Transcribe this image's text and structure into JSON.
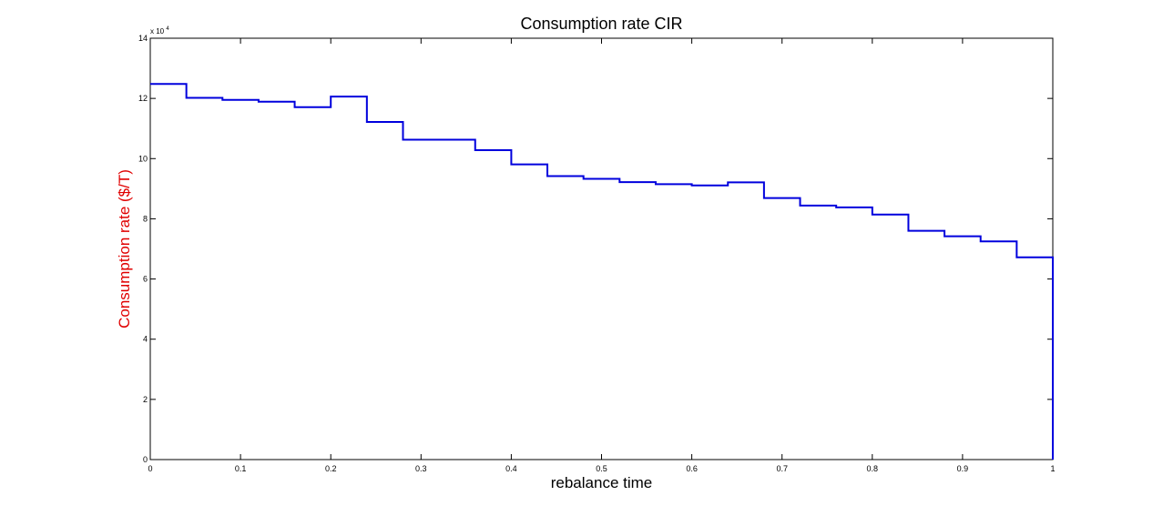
{
  "chart_data": {
    "type": "line",
    "step": true,
    "title": "Consumption rate CIR",
    "xlabel": "rebalance time",
    "ylabel": "Consumption rate ($/T)",
    "ylabel_color": "#e00000",
    "line_color": "#0000dd",
    "y_multiplier_label": "x 10",
    "y_multiplier_exp": "4",
    "xlim": [
      0,
      1
    ],
    "ylim": [
      0,
      14
    ],
    "y_scale_factor": 10000,
    "grid": false,
    "x_ticks": [
      0,
      0.1,
      0.2,
      0.3,
      0.4,
      0.5,
      0.6,
      0.7,
      0.8,
      0.9,
      1
    ],
    "x_tick_labels": [
      "0",
      "0.1",
      "0.2",
      "0.3",
      "0.4",
      "0.5",
      "0.6",
      "0.7",
      "0.8",
      "0.9",
      "1"
    ],
    "y_ticks": [
      0,
      2,
      4,
      6,
      8,
      10,
      12,
      14
    ],
    "y_tick_labels": [
      "0",
      "2",
      "4",
      "6",
      "8",
      "10",
      "12",
      "14"
    ],
    "series": [
      {
        "x": [
          0,
          0.04,
          0.08,
          0.12,
          0.16,
          0.2,
          0.24,
          0.28,
          0.32,
          0.36,
          0.4,
          0.44,
          0.48,
          0.52,
          0.56,
          0.6,
          0.64,
          0.68,
          0.72,
          0.76,
          0.8,
          0.84,
          0.88,
          0.92,
          0.96,
          1.0
        ],
        "y": [
          124800,
          120200,
          119500,
          118900,
          117100,
          120600,
          112200,
          106300,
          106300,
          102800,
          98100,
          94200,
          93300,
          92200,
          91500,
          91100,
          92100,
          86900,
          84400,
          83800,
          81400,
          76000,
          74200,
          72500,
          67200,
          0
        ]
      }
    ]
  }
}
